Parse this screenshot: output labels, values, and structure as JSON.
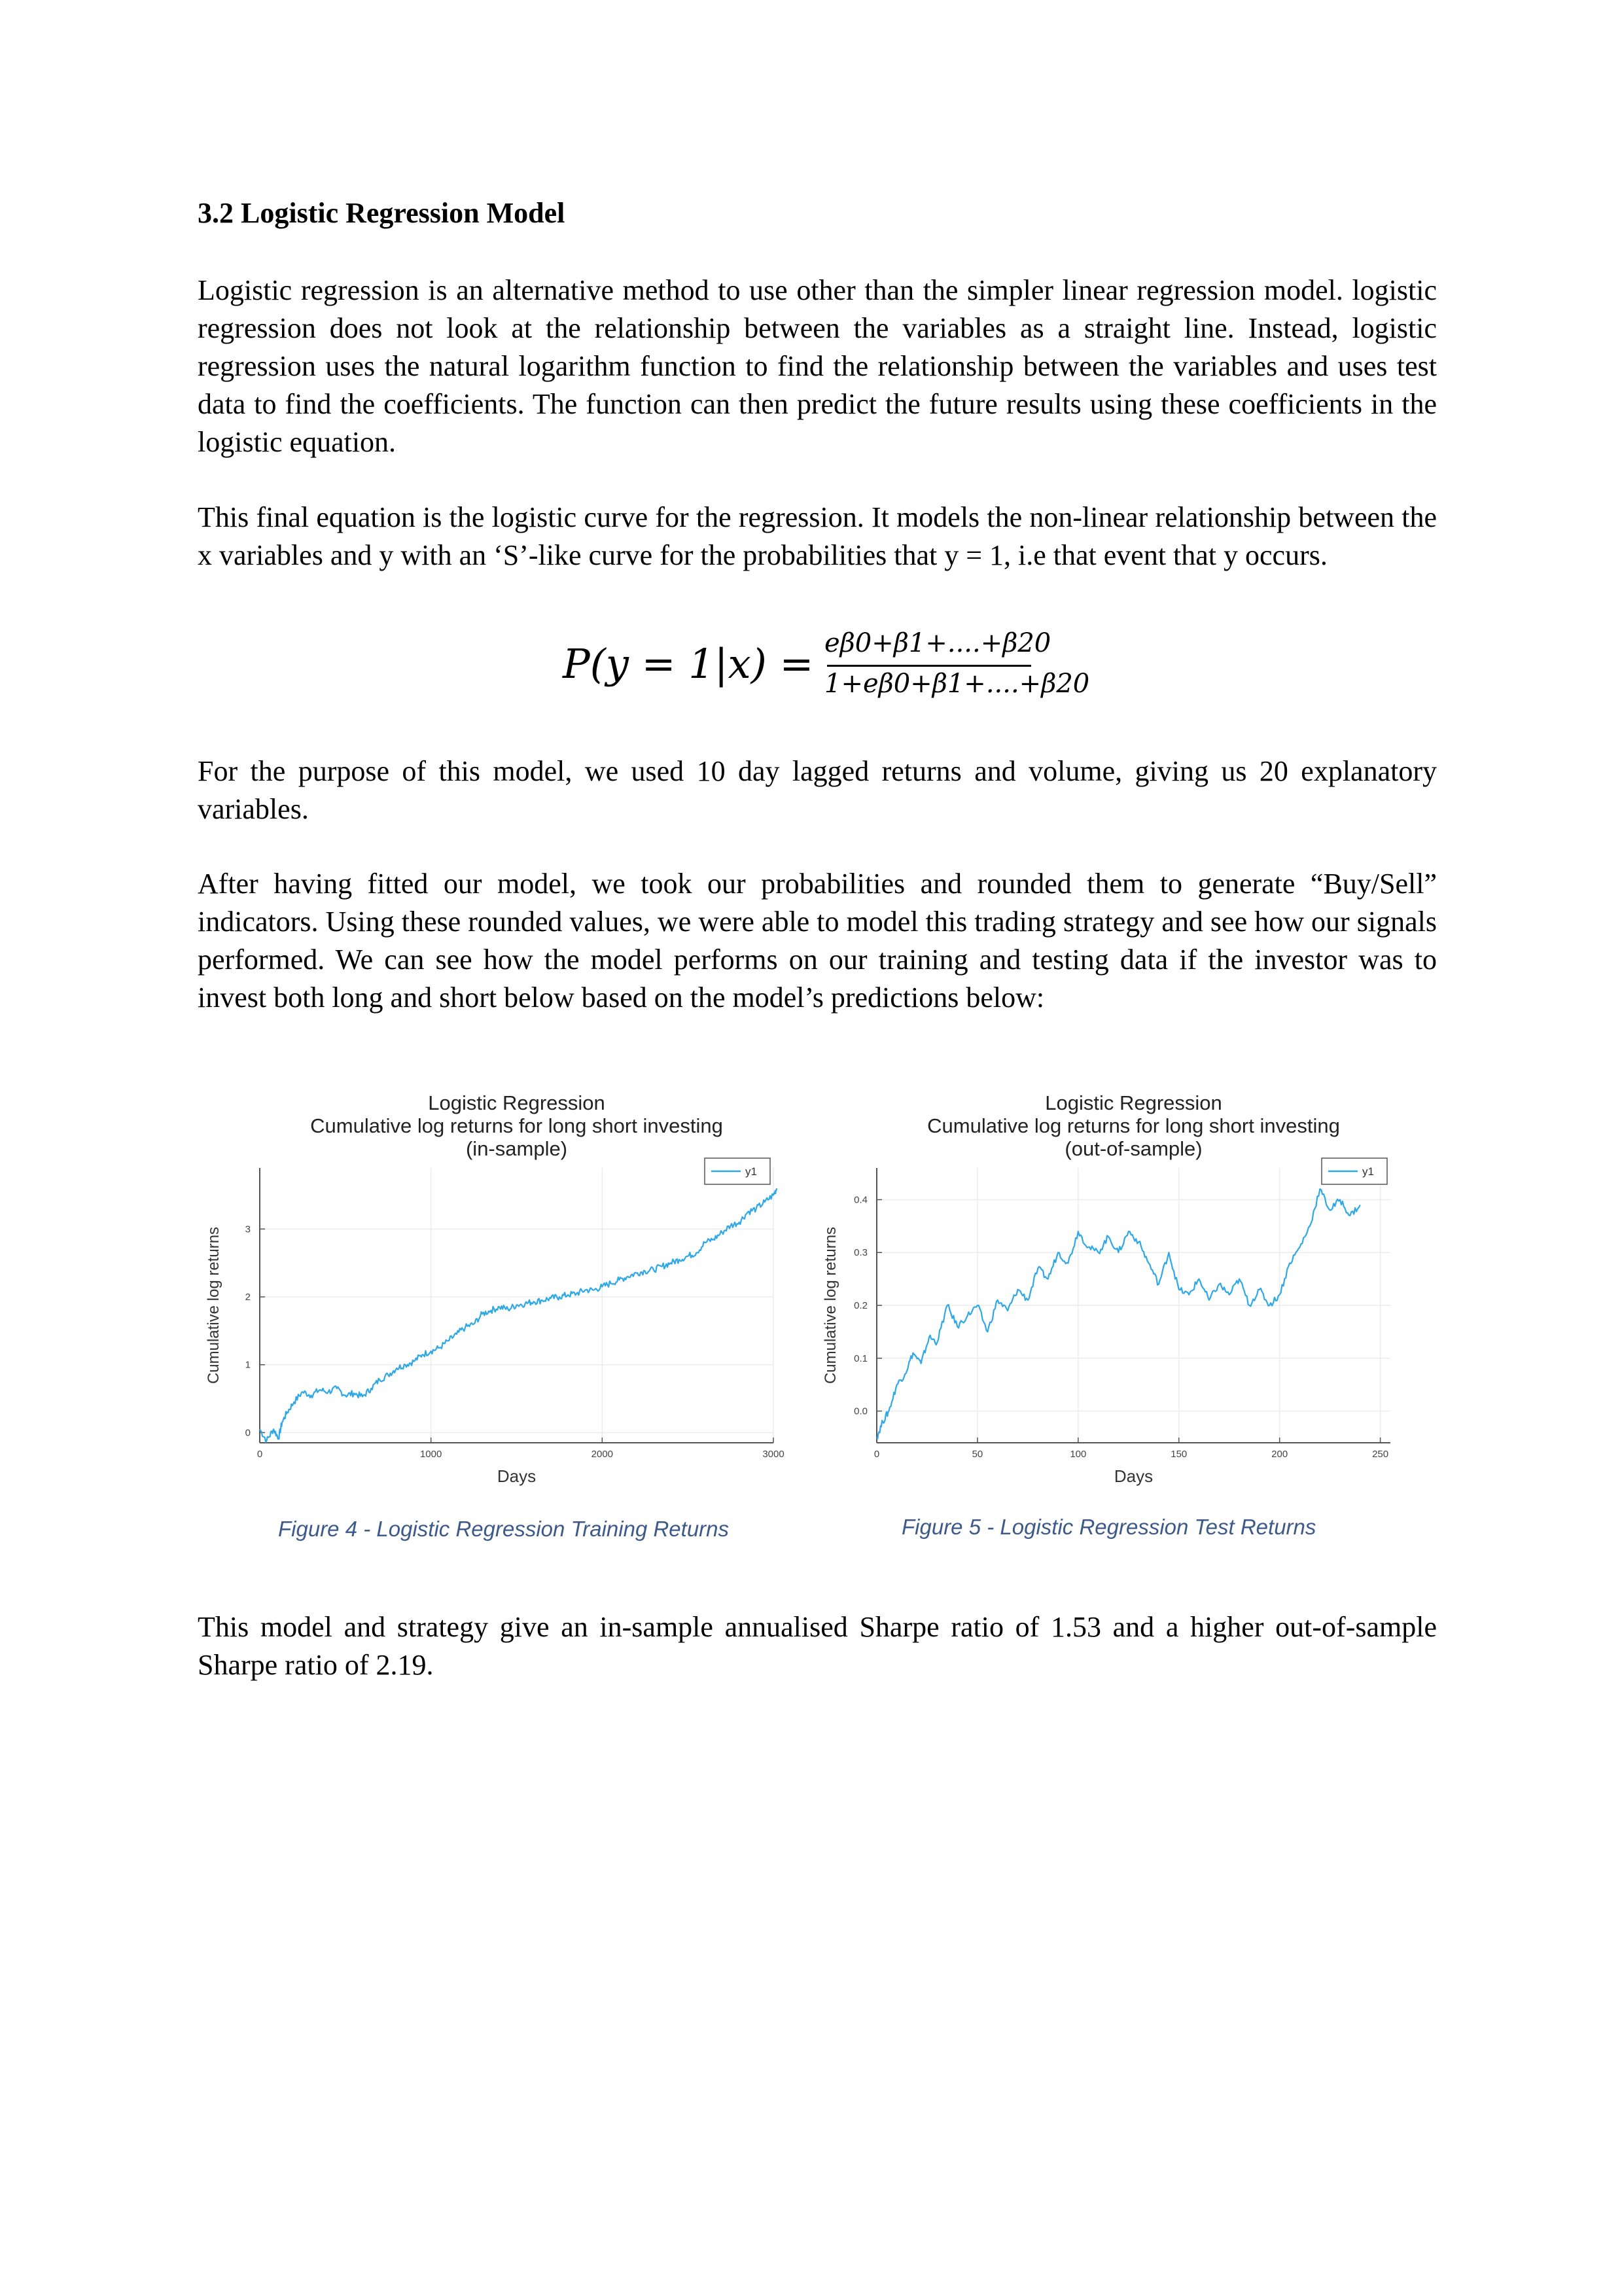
{
  "heading": "3.2 Logistic Regression Model",
  "paragraphs": {
    "p1": "Logistic regression is an alternative method to use other than the simpler linear regression model. logistic regression does not look at the relationship between the variables as a straight line. Instead, logistic regression uses the natural logarithm function to find the relationship between the variables and uses test data to find the coefficients. The function can then predict the future results using these coefficients in the logistic equation.",
    "p2": "This final equation is the logistic curve for the regression. It models the non-linear relationship between the x variables and y with an ‘S’-like curve for the probabilities that y = 1, i.e that event that y occurs.",
    "p3": "For the purpose of this model, we used 10 day lagged returns and volume, giving us 20 explanatory variables.",
    "p4": "After having fitted our model, we took our probabilities and rounded them to generate “Buy/Sell” indicators. Using these rounded values, we were able to model this trading strategy and see how our signals performed. We can see how the model performs on our training and testing data if the investor was to invest both long and short below based on the model’s predictions below:",
    "p5": "This model and strategy give an in-sample annualised Sharpe ratio of 1.53 and a higher out-of-sample Sharpe ratio of 2.19."
  },
  "equation": {
    "lhs": "P(y = 1|x) =",
    "numerator": "eβ0+β1+....+β20",
    "denominator": "1+eβ0+β1+....+β20"
  },
  "figures": {
    "fig4_caption": "Figure 4 - Logistic Regression Training Returns",
    "fig5_caption": "Figure 5 - Logistic Regression Test Returns"
  },
  "chart_data": [
    {
      "type": "line",
      "title": "Logistic Regression",
      "subtitle_lines": [
        "Cumulative log returns for long short investing",
        "(in-sample)"
      ],
      "xlabel": "Days",
      "ylabel": "Cumulative log returns",
      "xlim": [
        0,
        3000
      ],
      "ylim": [
        -0.15,
        3.9
      ],
      "xticks": [
        0,
        1000,
        2000,
        3000
      ],
      "yticks": [
        0,
        1,
        2,
        3
      ],
      "grid": true,
      "legend": "top-right",
      "line_color": "#2ea8e6",
      "series": [
        {
          "name": "y1",
          "x": [
            0,
            40,
            80,
            110,
            130,
            160,
            200,
            250,
            300,
            350,
            400,
            450,
            500,
            550,
            600,
            650,
            700,
            750,
            800,
            850,
            900,
            950,
            1000,
            1050,
            1100,
            1150,
            1200,
            1250,
            1300,
            1350,
            1400,
            1450,
            1500,
            1550,
            1600,
            1650,
            1700,
            1750,
            1800,
            1850,
            1900,
            1950,
            2000,
            2050,
            2100,
            2150,
            2200,
            2250,
            2300,
            2350,
            2400,
            2450,
            2500,
            2550,
            2600,
            2650,
            2700,
            2750,
            2800,
            2850,
            2900,
            2950,
            3000,
            3020
          ],
          "values": [
            0.05,
            -0.12,
            0.05,
            -0.08,
            0.15,
            0.3,
            0.45,
            0.6,
            0.55,
            0.63,
            0.6,
            0.65,
            0.55,
            0.58,
            0.53,
            0.65,
            0.78,
            0.85,
            0.95,
            1.0,
            1.05,
            1.15,
            1.2,
            1.25,
            1.35,
            1.45,
            1.55,
            1.6,
            1.75,
            1.8,
            1.85,
            1.82,
            1.88,
            1.9,
            1.93,
            1.95,
            1.98,
            2.0,
            2.03,
            2.05,
            2.1,
            2.1,
            2.15,
            2.2,
            2.25,
            2.3,
            2.35,
            2.38,
            2.4,
            2.45,
            2.5,
            2.55,
            2.6,
            2.65,
            2.8,
            2.85,
            2.95,
            3.05,
            3.1,
            3.25,
            3.3,
            3.4,
            3.5,
            3.6
          ]
        }
      ]
    },
    {
      "type": "line",
      "title": "Logistic Regression",
      "subtitle_lines": [
        "Cumulative log returns for long short investing",
        "(out-of-sample)"
      ],
      "xlabel": "Days",
      "ylabel": "Cumulative log returns",
      "xlim": [
        0,
        255
      ],
      "ylim": [
        -0.06,
        0.46
      ],
      "xticks": [
        0,
        50,
        100,
        150,
        200,
        250
      ],
      "yticks": [
        0.0,
        0.1,
        0.2,
        0.3,
        0.4
      ],
      "grid": true,
      "legend": "top-right",
      "line_color": "#2ea8e6",
      "series": [
        {
          "name": "y1",
          "x": [
            0,
            3,
            6,
            10,
            14,
            18,
            22,
            26,
            30,
            35,
            40,
            45,
            50,
            55,
            60,
            65,
            70,
            75,
            80,
            85,
            90,
            95,
            100,
            105,
            110,
            115,
            120,
            125,
            130,
            135,
            140,
            145,
            150,
            155,
            160,
            165,
            170,
            175,
            180,
            185,
            190,
            195,
            200,
            205,
            210,
            215,
            220,
            225,
            230,
            235,
            240
          ],
          "values": [
            -0.05,
            -0.02,
            0.0,
            0.05,
            0.07,
            0.11,
            0.09,
            0.14,
            0.13,
            0.2,
            0.16,
            0.18,
            0.2,
            0.15,
            0.21,
            0.19,
            0.23,
            0.21,
            0.27,
            0.25,
            0.3,
            0.28,
            0.34,
            0.31,
            0.3,
            0.33,
            0.3,
            0.34,
            0.32,
            0.28,
            0.24,
            0.3,
            0.23,
            0.22,
            0.25,
            0.21,
            0.24,
            0.22,
            0.25,
            0.2,
            0.23,
            0.2,
            0.22,
            0.28,
            0.31,
            0.35,
            0.42,
            0.38,
            0.4,
            0.37,
            0.39
          ]
        }
      ]
    }
  ]
}
